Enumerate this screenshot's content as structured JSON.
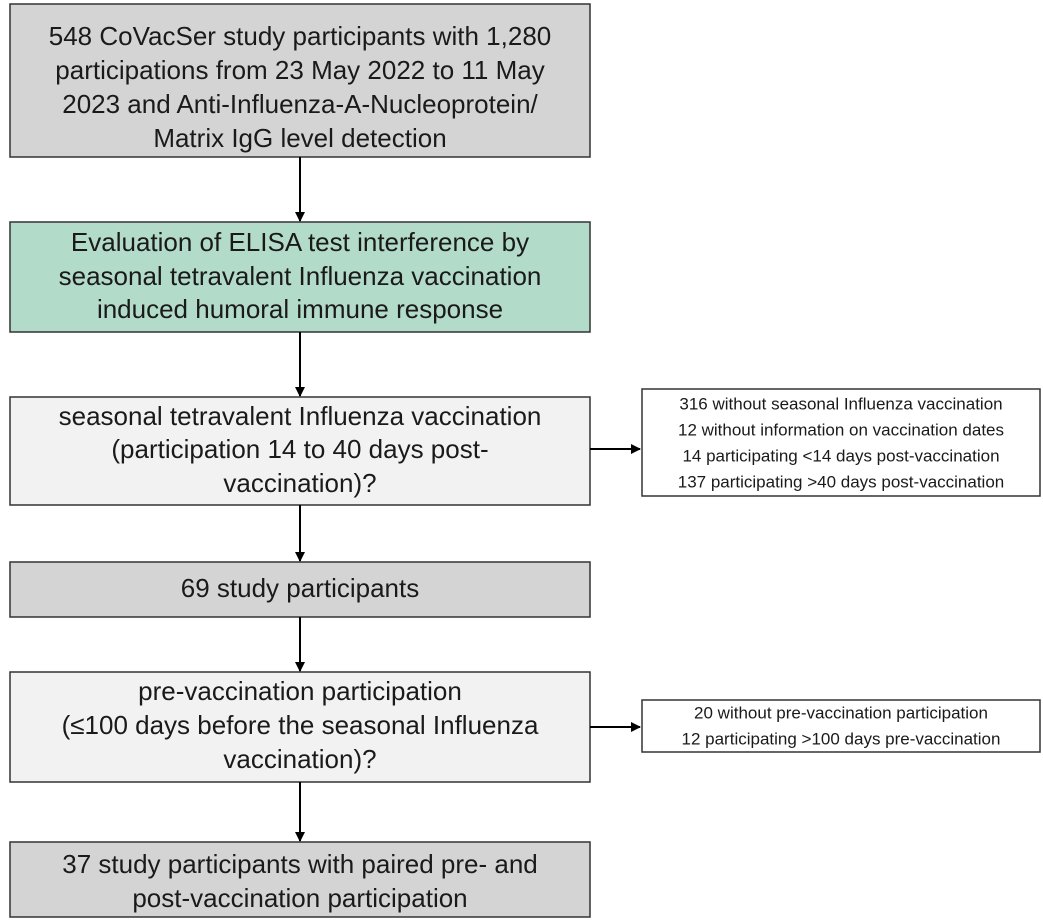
{
  "nodes": [
    {
      "lines": [
        "548 CoVacSer study participants with 1,280",
        "participations from 23 May 2022 to 11 May",
        "2023 and Anti-Influenza-A-Nucleoprotein/",
        "Matrix IgG level detection"
      ]
    },
    {
      "lines": [
        "Evaluation of ELISA test interference by",
        "seasonal tetravalent Influenza vaccination",
        "induced humoral immune response"
      ]
    },
    {
      "lines": [
        "seasonal tetravalent Influenza vaccination",
        "(participation 14 to 40 days post-",
        "vaccination)?"
      ]
    },
    {
      "lines": [
        "69 study participants"
      ]
    },
    {
      "lines": [
        "pre-vaccination participation",
        "(≤100 days before the seasonal Influenza",
        "vaccination)?"
      ]
    },
    {
      "lines": [
        "37 study participants with paired pre- and",
        "post-vaccination participation"
      ]
    }
  ],
  "side_notes": [
    {
      "lines": [
        "316 without seasonal Influenza vaccination",
        "12 without information on vaccination dates",
        "14 participating <14 days post-vaccination",
        "137 participating >40 days post-vaccination"
      ]
    },
    {
      "lines": [
        "20 without pre-vaccination participation",
        "12 participating >100 days pre-vaccination"
      ]
    }
  ]
}
